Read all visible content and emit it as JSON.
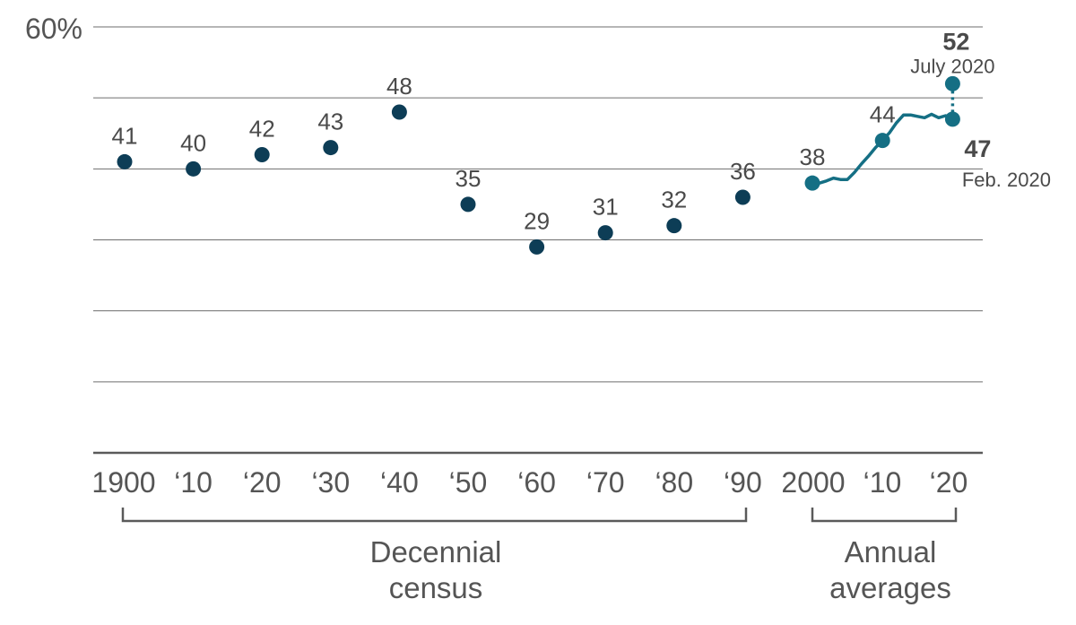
{
  "chart_data": {
    "type": "scatter",
    "ylim": [
      0,
      60
    ],
    "y_tick_label": "60%",
    "gridlines": [
      10,
      20,
      30,
      40,
      50,
      60
    ],
    "x_tick_labels": [
      {
        "x": 1900,
        "label": "1900"
      },
      {
        "x": 1910,
        "label": "‘10"
      },
      {
        "x": 1920,
        "label": "‘20"
      },
      {
        "x": 1930,
        "label": "‘30"
      },
      {
        "x": 1940,
        "label": "‘40"
      },
      {
        "x": 1950,
        "label": "‘50"
      },
      {
        "x": 1960,
        "label": "‘60"
      },
      {
        "x": 1970,
        "label": "‘70"
      },
      {
        "x": 1980,
        "label": "‘80"
      },
      {
        "x": 1990,
        "label": "‘90"
      },
      {
        "x": 2000,
        "label": "2000"
      },
      {
        "x": 2010,
        "label": "‘10"
      },
      {
        "x": 2020,
        "label": "‘20"
      }
    ],
    "decennial": {
      "label": "Decennial census",
      "x": [
        1900,
        1910,
        1920,
        1930,
        1940,
        1950,
        1960,
        1970,
        1980,
        1990
      ],
      "values": [
        41,
        40,
        42,
        43,
        48,
        35,
        29,
        31,
        32,
        36
      ]
    },
    "annual": {
      "label": "Annual averages",
      "x": [
        2000,
        2001,
        2002,
        2003,
        2004,
        2005,
        2006,
        2007,
        2008,
        2009,
        2010,
        2011,
        2012,
        2013,
        2014,
        2015,
        2016,
        2017,
        2018,
        2019,
        2020
      ],
      "values": [
        38,
        38,
        38.3,
        38.7,
        38.5,
        38.5,
        39.5,
        40.7,
        41.8,
        43,
        44,
        45.1,
        46.5,
        47.6,
        47.6,
        47.4,
        47.2,
        47.7,
        47.2,
        47.5,
        47
      ],
      "labeled_points": [
        {
          "x": 2000,
          "value": 38,
          "label": "38"
        },
        {
          "x": 2010,
          "value": 44,
          "label": "44"
        }
      ]
    },
    "callouts": [
      {
        "x": 2020,
        "value": 52,
        "value_label": "52",
        "date_label": "July 2020"
      },
      {
        "x": 2020,
        "value": 47,
        "value_label": "47",
        "date_label": "Feb. 2020"
      }
    ],
    "colors": {
      "decennial": "#0d3d56",
      "annual": "#156f84",
      "grid": "#6e6e6e",
      "axis": "#5a5a5a",
      "text": "#4a4a4a"
    }
  }
}
